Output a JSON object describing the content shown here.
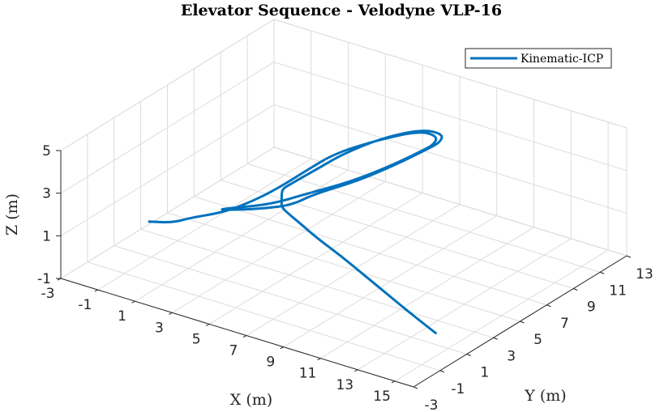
{
  "chart_data": {
    "type": "line",
    "projection": "3d",
    "title": "Elevator Sequence - Velodyne VLP-16",
    "xlabel": "X (m)",
    "ylabel": "Y (m)",
    "zlabel": "Z (m)",
    "xlim": [
      -3,
      16
    ],
    "ylim": [
      -3,
      13
    ],
    "zlim": [
      -1,
      5
    ],
    "xticks": [
      "-3",
      "-1",
      "1",
      "3",
      "5",
      "7",
      "9",
      "11",
      "13",
      "15"
    ],
    "yticks": [
      "-3",
      "-1",
      "1",
      "3",
      "5",
      "7",
      "9",
      "11",
      "13"
    ],
    "zticks": [
      "-1",
      "1",
      "3",
      "5"
    ],
    "grid": true,
    "legend_position": "top-right",
    "series": [
      {
        "name": "Kinematic-ICP",
        "color": "#0072BD",
        "points": [
          [
            14.9,
            0.2,
            0.0
          ],
          [
            13.0,
            1.1,
            0.0
          ],
          [
            11.0,
            2.1,
            0.0
          ],
          [
            9.0,
            3.1,
            0.0
          ],
          [
            7.0,
            4.1,
            0.0
          ],
          [
            5.0,
            5.0,
            0.0
          ],
          [
            3.5,
            5.8,
            0.0
          ],
          [
            2.5,
            6.3,
            0.0
          ],
          [
            2.0,
            6.6,
            0.0
          ],
          [
            2.0,
            6.6,
            0.4
          ],
          [
            2.1,
            6.5,
            0.9
          ],
          [
            2.6,
            6.3,
            1.3
          ],
          [
            3.8,
            6.9,
            2.2
          ],
          [
            4.6,
            7.6,
            2.8
          ],
          [
            5.8,
            8.8,
            3.4
          ],
          [
            7.0,
            10.2,
            3.6
          ],
          [
            7.9,
            10.5,
            3.5
          ],
          [
            7.9,
            10.3,
            3.2
          ],
          [
            7.6,
            9.8,
            3.0
          ],
          [
            6.5,
            9.0,
            2.3
          ],
          [
            5.2,
            7.8,
            1.6
          ],
          [
            3.8,
            6.6,
            1.1
          ],
          [
            3.0,
            6.0,
            0.6
          ],
          [
            2.0,
            5.4,
            0.4
          ],
          [
            1.0,
            4.8,
            0.3
          ],
          [
            0.3,
            4.3,
            0.3
          ],
          [
            0.5,
            4.6,
            0.3
          ],
          [
            2.2,
            5.5,
            0.6
          ],
          [
            3.5,
            6.4,
            1.1
          ],
          [
            5.0,
            7.6,
            1.6
          ],
          [
            6.4,
            8.8,
            2.3
          ],
          [
            7.5,
            9.5,
            3.0
          ],
          [
            7.8,
            10.0,
            3.2
          ],
          [
            7.8,
            10.2,
            3.5
          ],
          [
            7.0,
            10.0,
            3.6
          ],
          [
            5.8,
            8.6,
            3.4
          ],
          [
            4.4,
            7.3,
            2.9
          ],
          [
            3.5,
            6.4,
            2.2
          ],
          [
            2.4,
            5.7,
            1.3
          ],
          [
            1.6,
            4.9,
            0.8
          ],
          [
            0.6,
            4.2,
            0.3
          ],
          [
            -0.5,
            3.3,
            0.1
          ],
          [
            -1.0,
            2.6,
            0.0
          ],
          [
            -1.9,
            2.1,
            0.0
          ]
        ]
      }
    ]
  }
}
